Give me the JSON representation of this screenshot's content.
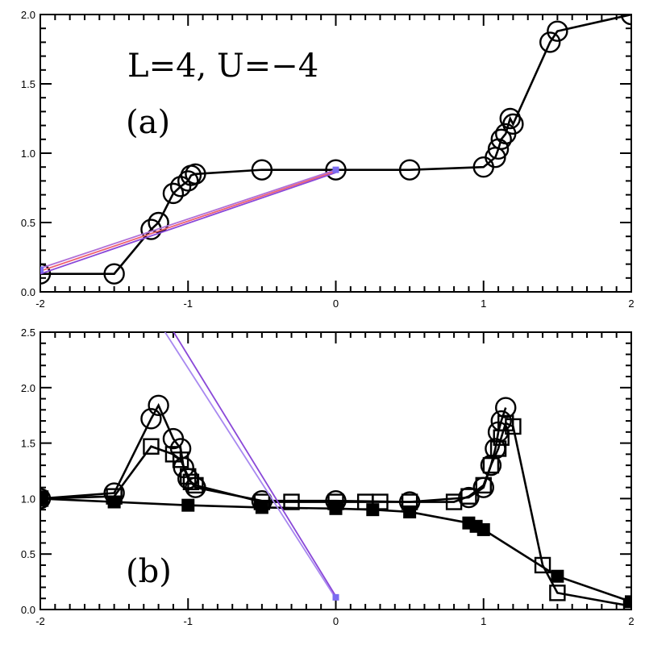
{
  "chart_data": [
    {
      "panel": "a",
      "type": "line",
      "annotation": "L=4,  U=−4",
      "panel_label": "(a)",
      "xlim": [
        -2,
        2
      ],
      "ylim": [
        0,
        2.0
      ],
      "x_ticks": [
        "-2",
        "-1",
        "0",
        "1",
        "2"
      ],
      "y_ticks": [
        "0.0",
        "0.5",
        "1.0",
        "1.5",
        "2.0"
      ],
      "grid": false,
      "series": [
        {
          "marker": "open-circle",
          "color": "#000000",
          "x": [
            -2.0,
            -1.5,
            -1.25,
            -1.2,
            -1.1,
            -1.05,
            -1.0,
            -0.98,
            -0.95,
            -0.5,
            0.0,
            0.5,
            1.0,
            1.08,
            1.1,
            1.12,
            1.15,
            1.18,
            1.2,
            1.45,
            1.5,
            2.0
          ],
          "y": [
            0.13,
            0.13,
            0.45,
            0.5,
            0.71,
            0.76,
            0.8,
            0.84,
            0.85,
            0.88,
            0.88,
            0.88,
            0.9,
            0.97,
            1.03,
            1.1,
            1.14,
            1.25,
            1.21,
            1.8,
            1.88,
            2.0
          ]
        }
      ],
      "overlay_lines": [
        {
          "color": "#ef6070",
          "x": [
            -2.0,
            0.0
          ],
          "y": [
            0.15,
            0.87
          ]
        },
        {
          "color": "#b070d8",
          "x": [
            -2.0,
            0.0
          ],
          "y": [
            0.17,
            0.88
          ]
        },
        {
          "color": "#8a48d8",
          "x": [
            -2.0,
            0.0
          ],
          "y": [
            0.13,
            0.86
          ]
        }
      ],
      "overlay_markers": [
        {
          "color": "#7a6cf0",
          "x": -2.0,
          "y": 0.16
        },
        {
          "color": "#7a6cf0",
          "x": 0.0,
          "y": 0.88
        }
      ]
    },
    {
      "panel": "b",
      "type": "line",
      "panel_label": "(b)",
      "xlim": [
        -2,
        2
      ],
      "ylim": [
        0,
        2.5
      ],
      "x_ticks": [
        "-2",
        "-1",
        "0",
        "1",
        "2"
      ],
      "y_ticks": [
        "0.0",
        "0.5",
        "1.0",
        "1.5",
        "2.0",
        "2.5"
      ],
      "grid": false,
      "series": [
        {
          "marker": "open-circle",
          "color": "#000000",
          "x": [
            -2.0,
            -1.5,
            -1.25,
            -1.2,
            -1.1,
            -1.05,
            -1.03,
            -1.0,
            -0.95,
            -0.5,
            0.0,
            0.5,
            0.9,
            1.0,
            1.05,
            1.08,
            1.1,
            1.12,
            1.15
          ],
          "y": [
            1.0,
            1.05,
            1.72,
            1.84,
            1.54,
            1.45,
            1.28,
            1.18,
            1.1,
            0.98,
            0.98,
            0.97,
            1.01,
            1.1,
            1.3,
            1.45,
            1.6,
            1.7,
            1.82
          ]
        },
        {
          "marker": "open-square",
          "color": "#000000",
          "x": [
            -2.0,
            -1.5,
            -1.25,
            -1.1,
            -1.05,
            -1.0,
            -0.98,
            -0.95,
            -0.5,
            -0.3,
            0.0,
            0.2,
            0.3,
            0.5,
            0.8,
            0.9,
            1.0,
            1.05,
            1.1,
            1.12,
            1.15,
            1.2,
            1.4,
            1.5,
            2.0
          ],
          "y": [
            1.0,
            1.02,
            1.47,
            1.4,
            1.35,
            1.2,
            1.15,
            1.12,
            0.97,
            0.97,
            0.97,
            0.97,
            0.97,
            0.97,
            0.97,
            1.02,
            1.12,
            1.3,
            1.45,
            1.55,
            1.68,
            1.65,
            0.4,
            0.15,
            0.03
          ]
        },
        {
          "marker": "filled-square",
          "color": "#000000",
          "x": [
            -2.0,
            -1.5,
            -1.0,
            -0.5,
            0.0,
            0.25,
            0.5,
            0.9,
            0.95,
            1.0,
            1.5,
            2.0
          ],
          "y": [
            1.0,
            0.97,
            0.94,
            0.92,
            0.91,
            0.9,
            0.88,
            0.78,
            0.75,
            0.72,
            0.3,
            0.07
          ]
        }
      ],
      "overlay_lines": [
        {
          "color": "#a888f0",
          "x": [
            -1.18,
            0.0
          ],
          "y": [
            2.55,
            0.1
          ]
        },
        {
          "color": "#8a48d8",
          "x": [
            -1.12,
            0.0
          ],
          "y": [
            2.55,
            0.12
          ]
        }
      ],
      "overlay_markers": [
        {
          "color": "#7a6cf0",
          "x": 0.0,
          "y": 0.11
        }
      ]
    }
  ]
}
